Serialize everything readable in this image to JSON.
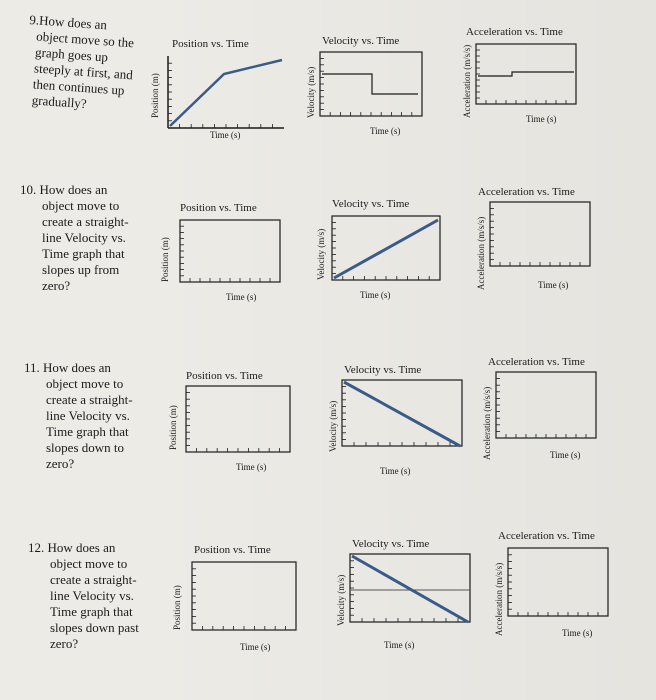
{
  "questions": [
    {
      "num": "9.",
      "lines": [
        "How does an",
        "object move so the",
        "graph goes up",
        "steeply at first, and",
        "then continues up",
        "gradually?"
      ]
    },
    {
      "num": "10.",
      "lines": [
        "How does an",
        "object move to",
        "create a straight-",
        "line Velocity vs.",
        "Time graph that",
        "slopes up from",
        "zero?"
      ]
    },
    {
      "num": "11.",
      "lines": [
        "How does an",
        "object move to",
        "create a straight-",
        "line Velocity vs.",
        "Time graph that",
        "slopes down to",
        "zero?"
      ]
    },
    {
      "num": "12.",
      "lines": [
        "How does an",
        "object move to",
        "create a straight-",
        "line Velocity vs.",
        "Time graph that",
        "slopes down past",
        "zero?"
      ]
    }
  ],
  "graphs": {
    "position": {
      "title": "Position vs. Time",
      "ylabel": "Position (m)",
      "xlabel": "Time (s)"
    },
    "velocity": {
      "title": "Velocity vs. Time",
      "ylabel": "Velocity (m/s)",
      "xlabel": "Time (s)"
    },
    "acceleration": {
      "title": "Acceleration vs. Time",
      "ylabel": "Acceleration (m/s/s)",
      "xlabel": "Time (s)"
    }
  },
  "colors": {
    "paper": "#ecebe6",
    "ink": "#1b1b1b",
    "line": "#3a5b8a",
    "grid": "#555555"
  }
}
